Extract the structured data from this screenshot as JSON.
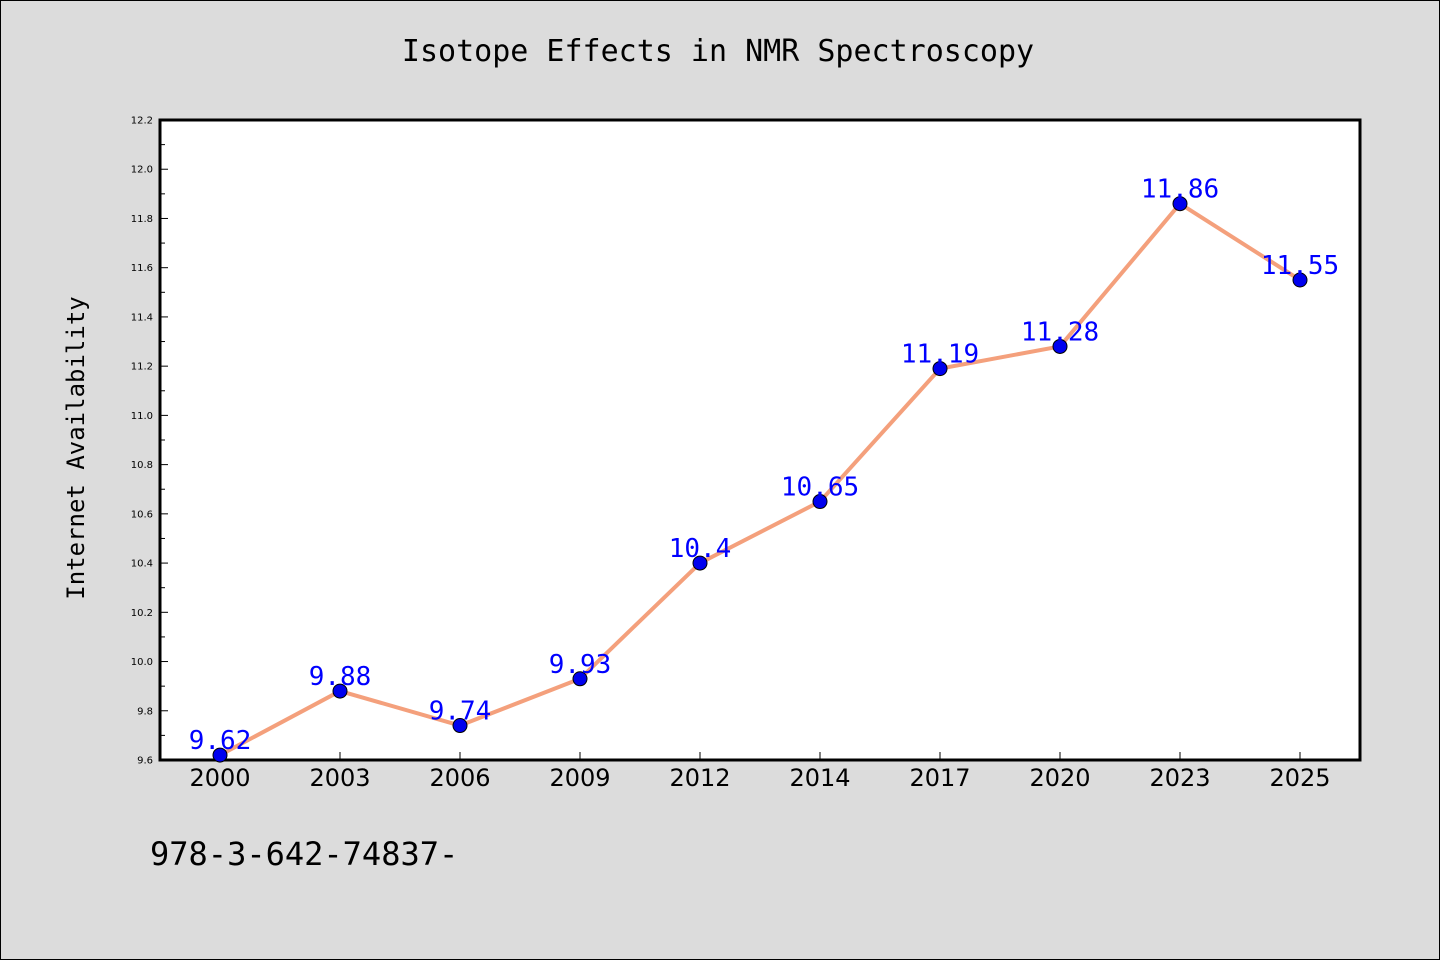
{
  "chart_data": {
    "type": "line",
    "title": "Isotope Effects in NMR Spectroscopy",
    "xlabel": "",
    "ylabel": "Internet Availability",
    "categories": [
      "2000",
      "2003",
      "2006",
      "2009",
      "2012",
      "2014",
      "2017",
      "2020",
      "2023",
      "2025"
    ],
    "series": [
      {
        "values": [
          9.62,
          9.88,
          9.74,
          9.93,
          10.4,
          10.65,
          11.19,
          11.28,
          11.86,
          11.55
        ],
        "data_labels": [
          "9.62",
          "9.88",
          "9.74",
          "9.93",
          "10.4",
          "10.65",
          "11.19",
          "11.28",
          "11.86",
          "11.55"
        ],
        "line_color": "#f4a07c",
        "marker_color": "#0000ee",
        "label_color": "#0000ff"
      }
    ],
    "ylim": [
      9.6,
      12.2
    ],
    "y_ticks": [
      "9.6",
      "9.8",
      "10.0",
      "10.2",
      "10.4",
      "10.6",
      "10.8",
      "11.0",
      "11.2",
      "11.4",
      "11.6",
      "11.8",
      "12.0",
      "12.2"
    ],
    "grid": false,
    "legend": "none",
    "background_color": "#dcdcdc",
    "plot_background_color": "#ffffff"
  },
  "footer": {
    "text": "978-3-642-74837-"
  }
}
